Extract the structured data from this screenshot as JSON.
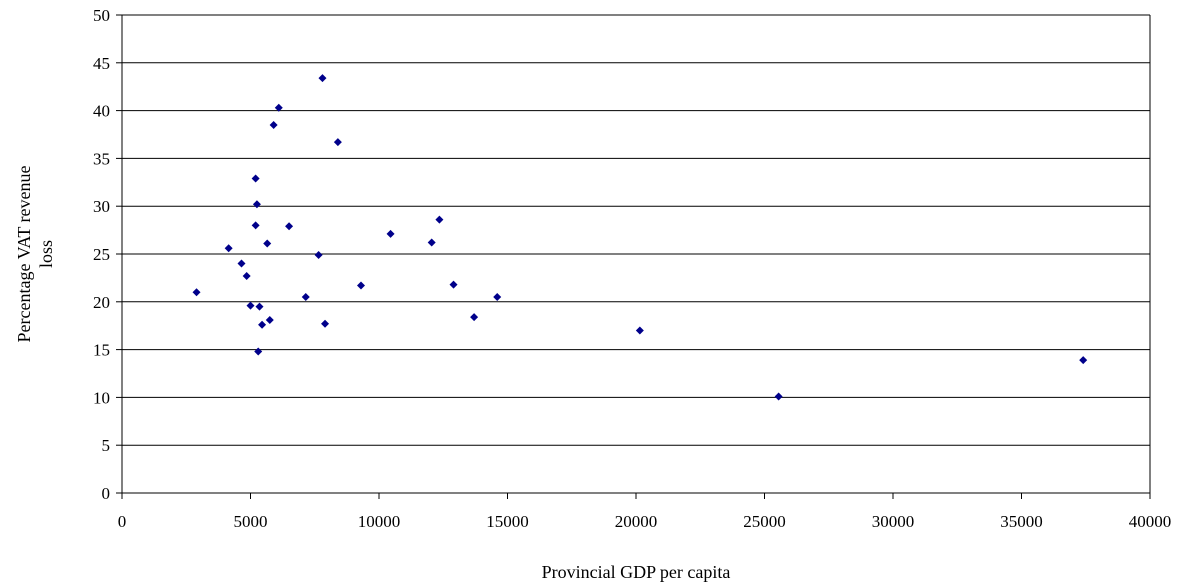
{
  "chart_data": {
    "type": "scatter",
    "title": "",
    "xlabel": "Provincial GDP per capita",
    "ylabel": [
      "Percentage VAT revenue",
      "loss"
    ],
    "xlim": [
      0,
      40000
    ],
    "ylim": [
      0,
      50
    ],
    "x_ticks": [
      "0",
      "5000",
      "10000",
      "15000",
      "20000",
      "25000",
      "30000",
      "35000",
      "40000"
    ],
    "y_ticks": [
      "0",
      "5",
      "10",
      "15",
      "20",
      "25",
      "30",
      "35",
      "40",
      "45",
      "50"
    ],
    "grid": "horizontal",
    "legend": "none",
    "marker_color": "#00008B",
    "points": [
      {
        "x": 2900,
        "y": 21.0
      },
      {
        "x": 4150,
        "y": 25.6
      },
      {
        "x": 4650,
        "y": 24.0
      },
      {
        "x": 4850,
        "y": 22.7
      },
      {
        "x": 5000,
        "y": 19.6
      },
      {
        "x": 5200,
        "y": 28.0
      },
      {
        "x": 5200,
        "y": 32.9
      },
      {
        "x": 5250,
        "y": 30.2
      },
      {
        "x": 5300,
        "y": 14.8
      },
      {
        "x": 5350,
        "y": 19.5
      },
      {
        "x": 5450,
        "y": 17.6
      },
      {
        "x": 5650,
        "y": 26.1
      },
      {
        "x": 5750,
        "y": 18.1
      },
      {
        "x": 5900,
        "y": 38.5
      },
      {
        "x": 6100,
        "y": 40.3
      },
      {
        "x": 6500,
        "y": 27.9
      },
      {
        "x": 7150,
        "y": 20.5
      },
      {
        "x": 7650,
        "y": 24.9
      },
      {
        "x": 7800,
        "y": 43.4
      },
      {
        "x": 7900,
        "y": 17.7
      },
      {
        "x": 8400,
        "y": 36.7
      },
      {
        "x": 9300,
        "y": 21.7
      },
      {
        "x": 10450,
        "y": 27.1
      },
      {
        "x": 12050,
        "y": 26.2
      },
      {
        "x": 12350,
        "y": 28.6
      },
      {
        "x": 12900,
        "y": 21.8
      },
      {
        "x": 13700,
        "y": 18.4
      },
      {
        "x": 14600,
        "y": 20.5
      },
      {
        "x": 20150,
        "y": 17.0
      },
      {
        "x": 25550,
        "y": 10.1
      },
      {
        "x": 37400,
        "y": 13.9
      }
    ]
  }
}
